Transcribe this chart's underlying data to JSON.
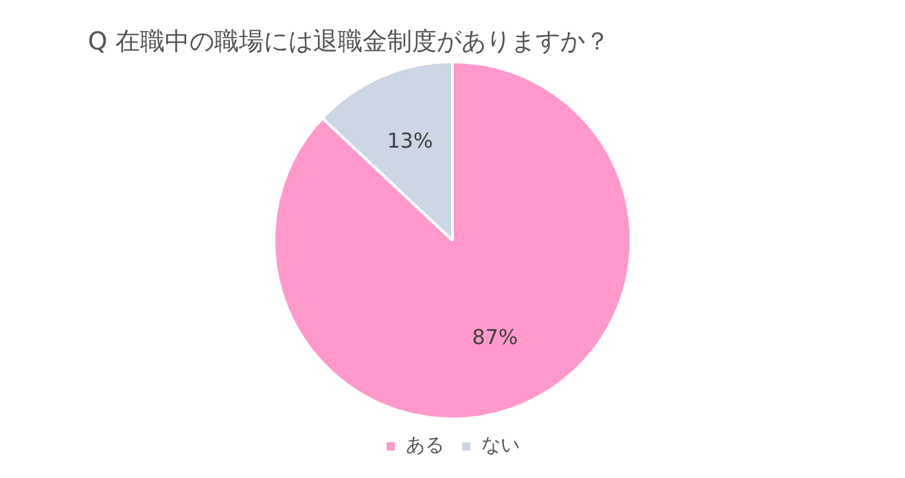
{
  "chart_data": {
    "type": "pie",
    "title": "Q 在職中の職場には退職金制度がありますか？",
    "categories": [
      "ある",
      "ない"
    ],
    "values": [
      87,
      13
    ],
    "colors": [
      "#ff99cc",
      "#ccd6e4"
    ],
    "value_labels": [
      "87%",
      "13%"
    ],
    "legend": "bottom"
  }
}
